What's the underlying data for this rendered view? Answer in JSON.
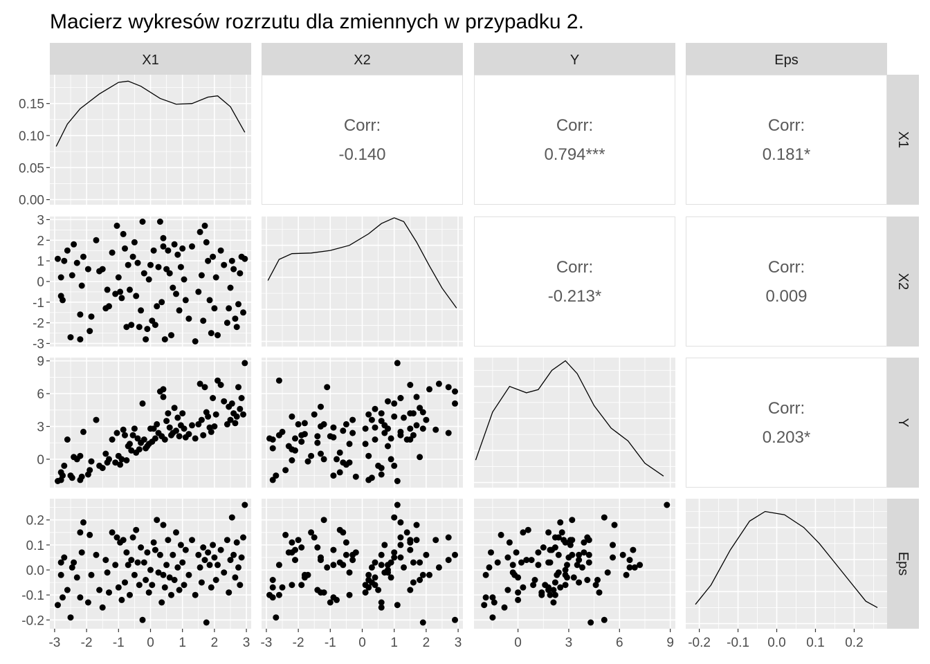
{
  "title": "Macierz wykresów rozrzutu dla zmiennych w przypadku 2.",
  "chart_data": {
    "type": "scatter",
    "variables": [
      "X1",
      "X2",
      "Y",
      "Eps"
    ],
    "corr_label": "Corr:",
    "correlations": [
      {
        "row": "X1",
        "col": "X2",
        "value": "-0.140"
      },
      {
        "row": "X1",
        "col": "Y",
        "value": "0.794***"
      },
      {
        "row": "X1",
        "col": "Eps",
        "value": "0.181*"
      },
      {
        "row": "X2",
        "col": "Y",
        "value": "-0.213*"
      },
      {
        "row": "X2",
        "col": "Eps",
        "value": "0.009"
      },
      {
        "row": "Y",
        "col": "Eps",
        "value": "0.203*"
      }
    ],
    "axes": {
      "X1": {
        "range": [
          -3.15,
          3.15
        ],
        "ticks": [
          -3,
          -2,
          -1,
          0,
          1,
          2,
          3
        ],
        "tick_labels": [
          "-3",
          "-2",
          "-1",
          "0",
          "1",
          "2",
          "3"
        ]
      },
      "X2": {
        "range": [
          -3.15,
          3.15
        ],
        "ticks": [
          -3,
          -2,
          -1,
          0,
          1,
          2,
          3
        ],
        "tick_labels": [
          "-3",
          "-2",
          "-1",
          "0",
          "1",
          "2",
          "3"
        ]
      },
      "Y": {
        "range": [
          -2.6,
          9.3
        ],
        "ticks": [
          0,
          3,
          6,
          9
        ],
        "tick_labels": [
          "0",
          "3",
          "6",
          "9"
        ]
      },
      "Eps": {
        "range": [
          -0.235,
          0.285
        ],
        "ticks": [
          -0.2,
          -0.1,
          0.0,
          0.1,
          0.2
        ],
        "tick_labels": [
          "-0.2",
          "-0.1",
          "0.0",
          "0.1",
          "0.2"
        ]
      }
    },
    "density_axis": {
      "range": [
        -0.008,
        0.195
      ],
      "ticks": [
        0.0,
        0.05,
        0.1,
        0.15
      ],
      "tick_labels": [
        "0.00",
        "0.05",
        "0.10",
        "0.15"
      ]
    },
    "densities": {
      "X1": {
        "x": [
          -2.95,
          -2.6,
          -2.2,
          -1.6,
          -1.0,
          -0.7,
          -0.3,
          0.3,
          0.8,
          1.3,
          1.8,
          2.1,
          2.5,
          2.95
        ],
        "y": [
          0.083,
          0.118,
          0.142,
          0.165,
          0.183,
          0.185,
          0.177,
          0.158,
          0.149,
          0.15,
          0.16,
          0.162,
          0.145,
          0.105
        ]
      },
      "X2": {
        "x": [
          -2.95,
          -2.6,
          -2.2,
          -1.6,
          -1.0,
          -0.4,
          0.2,
          0.6,
          1.0,
          1.3,
          1.7,
          2.1,
          2.5,
          2.95
        ],
        "y": [
          0.095,
          0.128,
          0.137,
          0.138,
          0.142,
          0.15,
          0.168,
          0.184,
          0.193,
          0.187,
          0.155,
          0.118,
          0.083,
          0.052
        ]
      },
      "Y": {
        "x": [
          -2.5,
          -1.5,
          -0.5,
          0.5,
          1.2,
          2.0,
          2.8,
          3.5,
          4.5,
          5.5,
          6.5,
          7.5,
          8.6
        ],
        "y": [
          0.035,
          0.11,
          0.15,
          0.14,
          0.145,
          0.175,
          0.19,
          0.17,
          0.12,
          0.085,
          0.065,
          0.03,
          0.01
        ]
      },
      "Eps": {
        "x": [
          -0.21,
          -0.17,
          -0.12,
          -0.07,
          -0.03,
          0.02,
          0.07,
          0.11,
          0.15,
          0.19,
          0.23,
          0.26
        ],
        "y": [
          0.03,
          0.06,
          0.115,
          0.16,
          0.175,
          0.17,
          0.15,
          0.125,
          0.095,
          0.065,
          0.035,
          0.025
        ]
      }
    },
    "points": {
      "X1": [
        -2.9,
        -2.8,
        -2.8,
        -2.75,
        -2.7,
        -2.6,
        -2.5,
        -2.45,
        -2.4,
        -2.3,
        -2.2,
        -2.15,
        -2.1,
        -1.95,
        -1.9,
        -1.85,
        -1.7,
        -1.6,
        -1.5,
        -1.4,
        -1.35,
        -1.3,
        -1.2,
        -1.1,
        -1.05,
        -1.0,
        -0.95,
        -0.9,
        -0.85,
        -0.8,
        -0.75,
        -0.7,
        -0.65,
        -0.6,
        -0.55,
        -0.5,
        -0.45,
        -0.4,
        -0.35,
        -0.3,
        -0.25,
        -0.2,
        -0.15,
        -0.1,
        -0.05,
        0.0,
        0.05,
        0.1,
        0.15,
        0.2,
        0.25,
        0.3,
        0.35,
        0.4,
        0.45,
        0.5,
        0.55,
        0.6,
        0.65,
        0.7,
        0.75,
        0.8,
        0.85,
        0.9,
        0.95,
        1.0,
        1.05,
        1.1,
        1.2,
        1.3,
        1.4,
        1.5,
        1.55,
        1.6,
        1.65,
        1.7,
        1.75,
        1.8,
        1.85,
        1.9,
        1.95,
        2.0,
        2.05,
        2.1,
        2.2,
        2.3,
        2.4,
        2.45,
        2.5,
        2.55,
        2.6,
        2.65,
        2.7,
        2.75,
        2.8,
        2.85,
        2.9,
        2.95,
        -2.2,
        0.4
      ],
      "X2": [
        1.1,
        -0.7,
        0.2,
        -0.9,
        1.0,
        1.5,
        -2.7,
        0.3,
        1.8,
        0.9,
        -2.8,
        -0.2,
        1.2,
        0.6,
        -2.4,
        -1.7,
        2.0,
        0.5,
        0.6,
        -1.3,
        -0.4,
        -1.2,
        1.4,
        -0.6,
        2.7,
        0.2,
        -0.5,
        -0.8,
        2.3,
        1.6,
        -2.2,
        0.8,
        -0.4,
        -2.1,
        1.2,
        1.9,
        -0.7,
        0.9,
        -2.2,
        -1.4,
        2.9,
        0.4,
        -2.8,
        -2.3,
        0.1,
        0.8,
        -1.9,
        1.5,
        -2.1,
        -1.2,
        0.7,
        2.9,
        -1.0,
        1.7,
        -2.8,
        0.6,
        1.5,
        0.4,
        -2.6,
        -0.3,
        1.8,
        -0.6,
        1.3,
        -1.4,
        0.7,
        1.6,
        0.1,
        -0.9,
        -1.8,
        1.7,
        -2.9,
        -0.5,
        2.4,
        0.3,
        -1.9,
        2.7,
        1.9,
        1.0,
        -0.9,
        -2.5,
        1.2,
        -1.3,
        0.2,
        -2.6,
        1.5,
        0.8,
        -2.0,
        -1.3,
        -0.3,
        1.0,
        0.6,
        -1.8,
        -2.2,
        -1.1,
        0.4,
        1.2,
        -1.5,
        1.1,
        -1.6,
        2.1
      ],
      "Y": [
        -2.0,
        -1.2,
        -1.9,
        -1.5,
        -0.6,
        1.8,
        -1.5,
        -1.7,
        0.2,
        0.0,
        -1.9,
        -1.6,
        2.5,
        -1.4,
        -1.0,
        -0.2,
        3.6,
        -0.6,
        -0.8,
        0.5,
        -0.3,
        0.0,
        1.8,
        -0.3,
        2.4,
        0.3,
        -0.5,
        0.0,
        2.7,
        2.2,
        -0.1,
        1.2,
        1.4,
        0.8,
        2.2,
        2.8,
        0.6,
        1.9,
        0.9,
        1.5,
        5.1,
        1.8,
        1.0,
        1.2,
        1.4,
        2.8,
        1.6,
        2.8,
        1.9,
        3.2,
        2.4,
        6.2,
        2.1,
        5.7,
        1.8,
        3.5,
        4.2,
        2.9,
        2.2,
        2.4,
        4.7,
        2.6,
        3.8,
        2.1,
        3.1,
        4.2,
        2.8,
        2.0,
        2.3,
        3.1,
        1.9,
        3.2,
        6.9,
        3.6,
        2.2,
        6.6,
        4.3,
        3.9,
        2.9,
        2.5,
        5.6,
        3.0,
        4.1,
        7.2,
        6.8,
        5.3,
        3.2,
        4.8,
        3.6,
        5.1,
        4.2,
        3.3,
        3.9,
        6.6,
        4.6,
        5.6,
        4.1,
        8.8,
        0.3,
        6.4
      ],
      "Eps": [
        -0.14,
        0.03,
        -0.02,
        -0.11,
        0.05,
        -0.08,
        -0.19,
        0.01,
        0.03,
        -0.03,
        -0.11,
        0.07,
        0.19,
        -0.13,
        0.14,
        -0.02,
        0.06,
        -0.08,
        -0.15,
        0.04,
        -0.01,
        -0.09,
        0.15,
        0.02,
        0.13,
        -0.07,
        0.11,
        -0.12,
        0.12,
        -0.05,
        0.07,
        0.02,
        -0.1,
        0.04,
        0.13,
        -0.02,
        0.16,
        0.03,
        -0.06,
        0.09,
        -0.2,
        0.03,
        -0.04,
        0.07,
        -0.09,
        0.0,
        -0.06,
        0.11,
        0.08,
        0.2,
        -0.01,
        0.06,
        -0.13,
        0.18,
        -0.07,
        0.02,
        0.12,
        -0.03,
        -0.1,
        0.06,
        -0.04,
        0.15,
        0.01,
        -0.08,
        0.1,
        0.03,
        -0.06,
        0.08,
        -0.02,
        0.12,
        -0.1,
        0.06,
        0.01,
        -0.05,
        0.09,
        0.04,
        -0.21,
        0.07,
        0.02,
        -0.07,
        0.1,
        0.05,
        -0.04,
        0.02,
        0.08,
        -0.01,
        0.12,
        -0.09,
        0.04,
        0.21,
        0.06,
        -0.03,
        0.11,
        0.01,
        -0.06,
        0.05,
        0.13,
        0.26,
        0.15,
        -0.02
      ]
    }
  }
}
